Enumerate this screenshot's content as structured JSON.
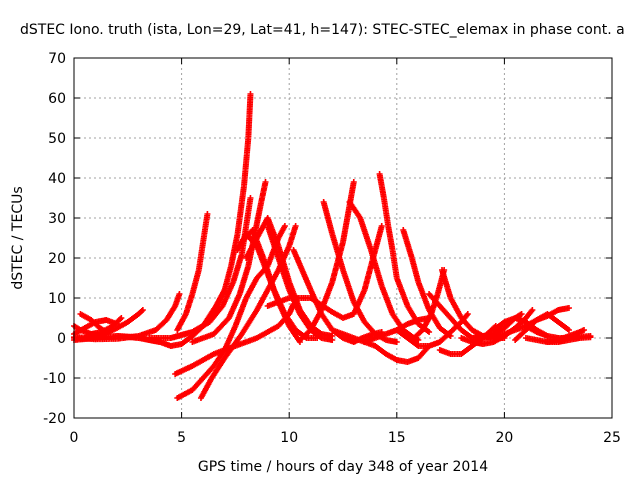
{
  "chart_data": {
    "type": "scatter",
    "title": "dSTEC Iono. truth (ista, Lon=29, Lat=41, h=147): STEC-STEC_elemax in phase cont. a",
    "xlabel": "GPS time / hours of day 348 of year 2014",
    "ylabel": "dSTEC  / TECUs",
    "xlim": [
      0,
      25
    ],
    "ylim": [
      -20,
      70
    ],
    "x_ticks": [
      0,
      5,
      10,
      15,
      20,
      25
    ],
    "y_ticks": [
      -20,
      -10,
      0,
      10,
      20,
      30,
      40,
      50,
      60,
      70
    ],
    "grid": true,
    "legend": "none",
    "marker": "plus",
    "series_color": "#ff0000",
    "series": [
      {
        "x": [
          0.0,
          0.5,
          1.0,
          1.5,
          2.0,
          2.5,
          3.0,
          3.2
        ],
        "y": [
          0.2,
          0.1,
          0.5,
          1.2,
          2.5,
          4.0,
          6.0,
          7.0
        ]
      },
      {
        "x": [
          0.0,
          0.3,
          0.8,
          1.3,
          1.8,
          2.2
        ],
        "y": [
          3.0,
          2.0,
          1.0,
          1.5,
          3.0,
          5.0
        ]
      },
      {
        "x": [
          0.0,
          0.5,
          1.0,
          1.5,
          2.0
        ],
        "y": [
          1.0,
          2.5,
          4.0,
          4.5,
          3.5
        ]
      },
      {
        "x": [
          0.3,
          0.8,
          1.2,
          1.5
        ],
        "y": [
          6.0,
          4.5,
          2.5,
          1.5
        ]
      },
      {
        "x": [
          0.0,
          1.0,
          2.0,
          3.0,
          3.8,
          4.3,
          4.7,
          4.9
        ],
        "y": [
          0.0,
          -0.3,
          -0.2,
          0.5,
          2.0,
          4.5,
          8.0,
          11.0
        ]
      },
      {
        "x": [
          0.0,
          1.0,
          2.0,
          3.0,
          3.5,
          4.0
        ],
        "y": [
          -0.5,
          0.0,
          0.5,
          0.2,
          -0.5,
          -1.0
        ]
      },
      {
        "x": [
          2.0,
          3.0,
          4.0,
          4.5,
          5.0,
          5.5,
          6.0,
          6.6,
          7.0
        ],
        "y": [
          0.5,
          0.0,
          -1.0,
          -2.0,
          -1.5,
          0.5,
          3.0,
          8.0,
          12.0
        ]
      },
      {
        "x": [
          4.8,
          5.2,
          5.5,
          5.8,
          6.0,
          6.2
        ],
        "y": [
          2.0,
          6.0,
          11.0,
          17.0,
          24.0,
          31.0
        ]
      },
      {
        "x": [
          3.5,
          4.5,
          5.5,
          6.0,
          6.5,
          7.0,
          7.3,
          7.6,
          7.9,
          8.1,
          8.2
        ],
        "y": [
          0.0,
          0.0,
          1.5,
          3.0,
          6.5,
          12.0,
          18.0,
          26.0,
          38.0,
          50.0,
          61.0
        ]
      },
      {
        "x": [
          4.5,
          5.5,
          6.3,
          6.9,
          7.4,
          7.8,
          8.0,
          8.2
        ],
        "y": [
          0.0,
          1.5,
          4.0,
          8.0,
          14.0,
          21.0,
          28.0,
          35.0
        ]
      },
      {
        "x": [
          5.5,
          6.5,
          7.2,
          7.7,
          8.1,
          8.4,
          8.7,
          8.9
        ],
        "y": [
          -1.0,
          1.0,
          5.0,
          11.0,
          18.0,
          26.0,
          34.0,
          39.0
        ]
      },
      {
        "x": [
          4.8,
          5.5,
          6.0,
          6.5,
          7.0,
          7.5,
          8.0,
          8.5,
          9.0,
          9.5,
          9.8
        ],
        "y": [
          -15.0,
          -13.0,
          -10.0,
          -7.0,
          -3.0,
          3.0,
          10.0,
          15.0,
          18.0,
          25.0,
          28.0
        ]
      },
      {
        "x": [
          4.7,
          5.5,
          6.5,
          7.5,
          8.5,
          9.5,
          10.0,
          10.2
        ],
        "y": [
          -9.0,
          -7.0,
          -4.0,
          -2.0,
          0.0,
          3.0,
          6.0,
          8.5
        ]
      },
      {
        "x": [
          5.9,
          6.4,
          7.0,
          7.8,
          8.5,
          9.0,
          9.5,
          10.0,
          10.3
        ],
        "y": [
          -15.0,
          -10.0,
          -5.0,
          1.0,
          7.0,
          12.0,
          17.0,
          23.0,
          28.0
        ]
      },
      {
        "x": [
          7.6,
          8.0,
          8.5,
          9.0,
          9.5,
          10.0,
          10.5
        ],
        "y": [
          22.0,
          26.0,
          23.0,
          16.0,
          9.0,
          3.0,
          -1.0
        ]
      },
      {
        "x": [
          7.8,
          8.3,
          8.8,
          9.3,
          9.8,
          10.3,
          10.8,
          11.3
        ],
        "y": [
          24.0,
          27.0,
          20.0,
          12.0,
          6.0,
          2.0,
          0.0,
          0.0
        ]
      },
      {
        "x": [
          8.0,
          8.5,
          9.0,
          9.5,
          10.0,
          10.5,
          11.0,
          11.5,
          12.0
        ],
        "y": [
          20.0,
          25.0,
          30.0,
          23.0,
          14.0,
          7.0,
          3.0,
          1.0,
          0.5
        ]
      },
      {
        "x": [
          9.0,
          9.5,
          10.0,
          10.5,
          11.0,
          11.5,
          12.0
        ],
        "y": [
          28.0,
          20.0,
          12.0,
          6.0,
          2.0,
          0.0,
          -0.5
        ]
      },
      {
        "x": [
          10.2,
          10.6,
          11.0,
          11.5,
          12.0,
          12.5,
          13.0,
          13.4,
          13.9,
          14.3
        ],
        "y": [
          22.0,
          17.0,
          12.0,
          6.0,
          2.0,
          0.0,
          -1.0,
          0.0,
          1.0,
          1.5
        ]
      },
      {
        "x": [
          10.5,
          11.0,
          11.5,
          12.0,
          12.5,
          12.8,
          13.0
        ],
        "y": [
          -0.5,
          2.0,
          7.0,
          14.0,
          24.0,
          33.0,
          39.0
        ]
      },
      {
        "x": [
          11.6,
          12.0,
          12.5,
          13.0,
          13.5,
          14.0,
          14.5,
          15.0
        ],
        "y": [
          34.0,
          26.0,
          17.0,
          9.0,
          4.0,
          1.0,
          -0.5,
          -1.0
        ]
      },
      {
        "x": [
          12.8,
          13.3,
          13.8,
          14.3,
          14.8,
          15.3,
          15.8,
          16.0
        ],
        "y": [
          34.0,
          30.0,
          22.0,
          13.0,
          6.0,
          2.0,
          0.0,
          -0.5
        ]
      },
      {
        "x": [
          9.0,
          10.0,
          11.0,
          12.0,
          12.5,
          13.0,
          13.5,
          14.0,
          14.3
        ],
        "y": [
          8.0,
          10.0,
          10.0,
          6.5,
          5.0,
          6.0,
          12.0,
          22.0,
          28.0
        ]
      },
      {
        "x": [
          14.2,
          14.4,
          14.6,
          14.8,
          15.0,
          15.5,
          16.0,
          16.5
        ],
        "y": [
          41.0,
          35.0,
          28.0,
          22.0,
          15.0,
          8.0,
          3.5,
          1.5
        ]
      },
      {
        "x": [
          12.0,
          13.0,
          14.0,
          14.5,
          15.0,
          15.5,
          16.0,
          16.5
        ],
        "y": [
          2.0,
          0.0,
          -2.0,
          -4.0,
          -5.5,
          -6.0,
          -5.0,
          -2.0
        ]
      },
      {
        "x": [
          15.3,
          15.7,
          16.0,
          16.5,
          17.0,
          17.5
        ],
        "y": [
          27.0,
          20.0,
          14.0,
          7.0,
          2.5,
          0.5
        ]
      },
      {
        "x": [
          13.5,
          14.5,
          15.0,
          15.5,
          16.0,
          16.5
        ],
        "y": [
          -1.0,
          1.0,
          2.0,
          3.5,
          4.5,
          5.0
        ]
      },
      {
        "x": [
          15.0,
          15.5,
          16.0,
          16.5,
          17.0,
          17.5,
          18.0,
          18.3
        ],
        "y": [
          2.0,
          0.0,
          -2.0,
          -2.0,
          -1.0,
          1.5,
          4.0,
          6.0
        ]
      },
      {
        "x": [
          15.8,
          16.2,
          16.6,
          16.9,
          17.2
        ],
        "y": [
          0.0,
          2.0,
          6.0,
          11.0,
          17.0
        ]
      },
      {
        "x": [
          17.1,
          17.5,
          18.0,
          18.5,
          19.0,
          19.5,
          20.0
        ],
        "y": [
          17.0,
          10.0,
          5.0,
          2.0,
          0.5,
          0.0,
          0.0
        ]
      },
      {
        "x": [
          17.0,
          17.5,
          18.0,
          18.5,
          19.0,
          19.6
        ],
        "y": [
          -3.0,
          -4.0,
          -4.0,
          -2.0,
          0.0,
          3.0
        ]
      },
      {
        "x": [
          16.5,
          17.0,
          17.5,
          18.0,
          18.5,
          19.0,
          19.5,
          20.0,
          20.5,
          20.8
        ],
        "y": [
          11.0,
          8.0,
          5.0,
          2.0,
          0.0,
          0.5,
          1.0,
          2.5,
          5.0,
          6.0
        ]
      },
      {
        "x": [
          18.0,
          18.5,
          19.0,
          19.5,
          20.0,
          20.5,
          21.0,
          21.3
        ],
        "y": [
          0.0,
          -1.0,
          -1.5,
          -1.0,
          0.5,
          2.5,
          5.0,
          7.0
        ]
      },
      {
        "x": [
          19.5,
          20.0,
          20.5,
          21.0,
          21.5,
          22.0
        ],
        "y": [
          2.0,
          4.0,
          5.0,
          4.0,
          2.0,
          0.5
        ]
      },
      {
        "x": [
          19.0,
          20.0,
          21.0,
          21.5,
          22.0,
          22.5,
          23.0
        ],
        "y": [
          0.0,
          1.0,
          3.0,
          4.5,
          5.5,
          7.0,
          7.5
        ]
      },
      {
        "x": [
          20.5,
          21.0,
          21.5,
          22.0,
          22.5,
          23.0
        ],
        "y": [
          -0.5,
          2.0,
          4.5,
          6.0,
          4.0,
          2.0
        ]
      },
      {
        "x": [
          21.0,
          21.5,
          22.0,
          22.5,
          23.0,
          23.5,
          24.0
        ],
        "y": [
          3.0,
          1.5,
          0.5,
          0.0,
          0.0,
          0.3,
          0.5
        ]
      },
      {
        "x": [
          21.0,
          22.0,
          22.5,
          23.0,
          23.5,
          23.7
        ],
        "y": [
          0.0,
          -1.0,
          -0.5,
          0.5,
          1.5,
          2.0
        ]
      },
      {
        "x": [
          22.0,
          22.5,
          23.0,
          23.5,
          24.0
        ],
        "y": [
          -1.0,
          -1.0,
          -0.5,
          0.0,
          0.2
        ]
      }
    ]
  }
}
